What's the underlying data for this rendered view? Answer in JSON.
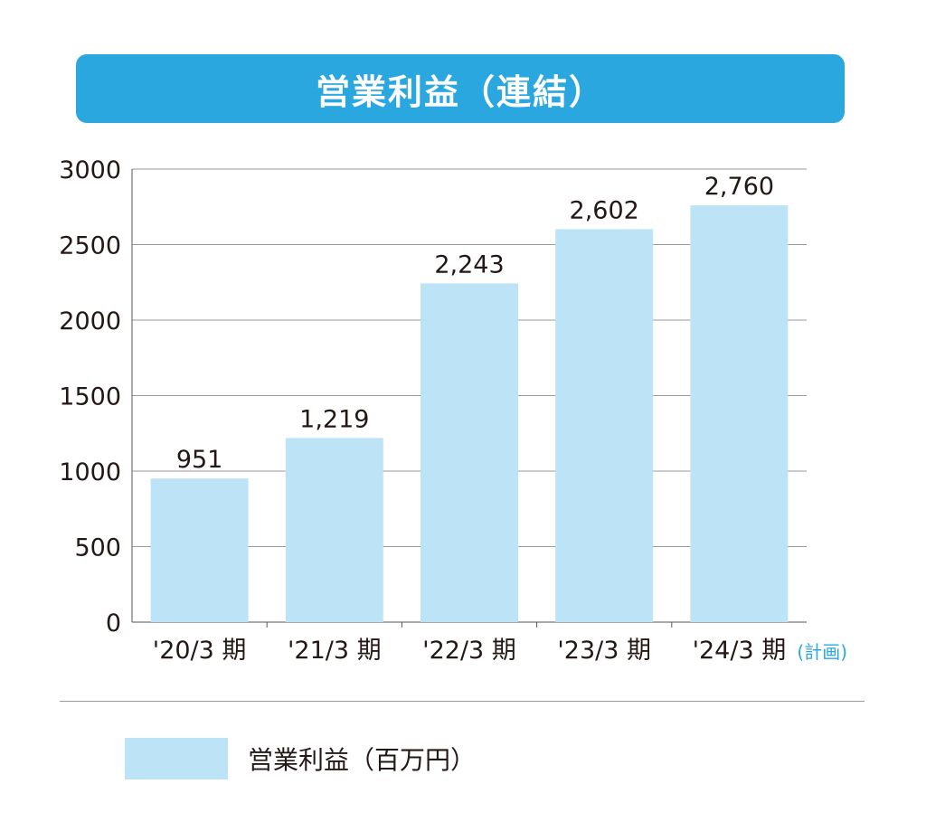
{
  "header": {
    "title": "営業利益（連結）"
  },
  "chart_data": {
    "type": "bar",
    "title": "営業利益（連結）",
    "categories": [
      "'20/3 期",
      "'21/3 期",
      "'22/3 期",
      "'23/3 期",
      "'24/3 期"
    ],
    "category_note": {
      "index": 4,
      "text": "(計画)"
    },
    "series": [
      {
        "name": "営業利益（百万円）",
        "values": [
          951,
          1219,
          2243,
          2602,
          2760
        ],
        "value_labels": [
          "951",
          "1,219",
          "2,243",
          "2,602",
          "2,760"
        ],
        "color": "#bde3f7"
      }
    ],
    "yticks": [
      0,
      500,
      1000,
      1500,
      2000,
      2500,
      3000
    ],
    "ylim": [
      0,
      3000
    ],
    "grid": true,
    "legend_position": "bottom",
    "note_color": "#2ba7df"
  },
  "legend": {
    "label": "営業利益（百万円）"
  }
}
